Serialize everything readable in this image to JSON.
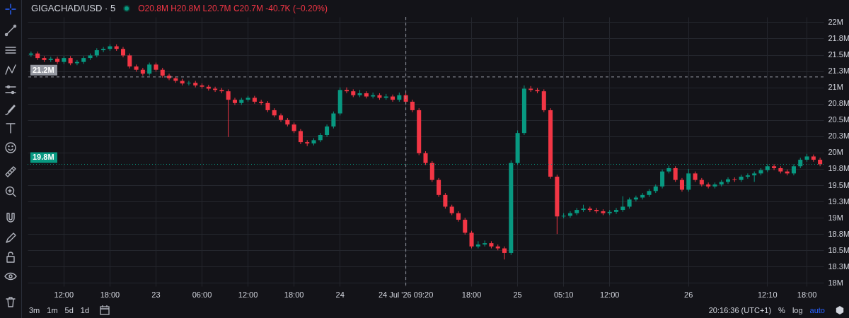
{
  "chart_data": {
    "type": "candlestick",
    "title": "GIGACHAD/USD · 5",
    "subtitle": "O20.8M H20.8M L20.7M C20.7M -40.7K (−0.20%)",
    "annotations": [
      "3m",
      "1m",
      "5d",
      "1d",
      "20:16:36 (UTC+1)",
      "%",
      "log",
      "auto"
    ],
    "categories": [
      null,
      null,
      null,
      null,
      null,
      "12:00",
      null,
      null,
      null,
      null,
      null,
      null,
      "18:00",
      null,
      null,
      null,
      null,
      null,
      null,
      "23",
      null,
      null,
      null,
      null,
      null,
      null,
      "06:00",
      null,
      null,
      null,
      null,
      null,
      null,
      "12:00",
      null,
      null,
      null,
      null,
      null,
      null,
      "18:00",
      null,
      null,
      null,
      null,
      null,
      null,
      "24",
      null,
      null,
      null,
      null,
      null,
      null,
      null,
      null,
      null,
      "24 Jul '26 09:20",
      null,
      null,
      null,
      null,
      null,
      null,
      null,
      null,
      null,
      "18:00",
      null,
      null,
      null,
      null,
      null,
      null,
      "25",
      null,
      null,
      null,
      null,
      null,
      null,
      "05:10",
      null,
      null,
      null,
      null,
      null,
      null,
      "12:00",
      null,
      null,
      null,
      null,
      null,
      null,
      null,
      null,
      null,
      null,
      null,
      "26",
      null,
      null,
      null,
      null,
      null,
      null,
      null,
      null,
      null,
      null,
      null,
      "12:10",
      null,
      null,
      null,
      null,
      null,
      "18:00",
      null,
      null
    ],
    "ohlc": [
      [
        21.5,
        21.55,
        21.47,
        21.52
      ],
      [
        21.52,
        21.55,
        21.42,
        21.45
      ],
      [
        21.45,
        21.48,
        21.39,
        21.42
      ],
      [
        21.42,
        21.47,
        21.39,
        21.44
      ],
      [
        21.44,
        21.47,
        21.36,
        21.39
      ],
      [
        21.39,
        21.48,
        21.36,
        21.45
      ],
      [
        21.45,
        21.48,
        21.34,
        21.37
      ],
      [
        21.37,
        21.42,
        21.34,
        21.39
      ],
      [
        21.39,
        21.48,
        21.36,
        21.45
      ],
      [
        21.45,
        21.52,
        21.42,
        21.49
      ],
      [
        21.49,
        21.6,
        21.46,
        21.57
      ],
      [
        21.57,
        21.62,
        21.54,
        21.59
      ],
      [
        21.59,
        21.66,
        21.56,
        21.63
      ],
      [
        21.63,
        21.66,
        21.56,
        21.59
      ],
      [
        21.59,
        21.62,
        21.46,
        21.49
      ],
      [
        21.49,
        21.52,
        21.29,
        21.32
      ],
      [
        21.32,
        21.35,
        21.24,
        21.27
      ],
      [
        21.27,
        21.3,
        21.18,
        21.21
      ],
      [
        21.21,
        21.38,
        21.18,
        21.35
      ],
      [
        21.35,
        21.38,
        21.24,
        21.27
      ],
      [
        21.27,
        21.3,
        21.15,
        21.18
      ],
      [
        21.18,
        21.21,
        21.11,
        21.14
      ],
      [
        21.14,
        21.17,
        21.07,
        21.1
      ],
      [
        21.1,
        21.13,
        21.03,
        21.06
      ],
      [
        21.06,
        21.1,
        21.03,
        21.07
      ],
      [
        21.07,
        21.1,
        21,
        21.03
      ],
      [
        21.03,
        21.06,
        20.98,
        21.01
      ],
      [
        21.01,
        21.04,
        20.95,
        20.98
      ],
      [
        20.98,
        21.01,
        20.93,
        20.96
      ],
      [
        20.96,
        20.99,
        20.91,
        20.94
      ],
      [
        20.94,
        20.97,
        20.24,
        20.81
      ],
      [
        20.81,
        20.84,
        20.73,
        20.76
      ],
      [
        20.76,
        20.84,
        20.73,
        20.81
      ],
      [
        20.81,
        20.87,
        20.78,
        20.84
      ],
      [
        20.84,
        20.87,
        20.75,
        20.78
      ],
      [
        20.78,
        20.81,
        20.73,
        20.76
      ],
      [
        20.76,
        20.79,
        20.62,
        20.65
      ],
      [
        20.65,
        20.68,
        20.54,
        20.57
      ],
      [
        20.57,
        20.6,
        20.47,
        20.5
      ],
      [
        20.5,
        20.53,
        20.4,
        20.43
      ],
      [
        20.43,
        20.46,
        20.3,
        20.33
      ],
      [
        20.33,
        20.36,
        20.13,
        20.16
      ],
      [
        20.16,
        20.19,
        20.1,
        20.14
      ],
      [
        20.14,
        20.22,
        20.11,
        20.19
      ],
      [
        20.19,
        20.3,
        20.16,
        20.27
      ],
      [
        20.27,
        20.43,
        20.24,
        20.4
      ],
      [
        20.4,
        20.63,
        20.37,
        20.6
      ],
      [
        20.6,
        21,
        20.57,
        20.96
      ],
      [
        20.96,
        21,
        20.91,
        20.94
      ],
      [
        20.94,
        20.97,
        20.85,
        20.88
      ],
      [
        20.88,
        20.96,
        20.85,
        20.91
      ],
      [
        20.91,
        20.94,
        20.83,
        20.86
      ],
      [
        20.86,
        20.92,
        20.83,
        20.88
      ],
      [
        20.88,
        20.91,
        20.81,
        20.84
      ],
      [
        20.84,
        20.9,
        20.81,
        20.86
      ],
      [
        20.86,
        20.89,
        20.78,
        20.81
      ],
      [
        20.81,
        20.92,
        20.78,
        20.88
      ],
      [
        20.88,
        20.91,
        20.75,
        20.78
      ],
      [
        20.78,
        20.81,
        20.62,
        20.65
      ],
      [
        20.65,
        20.68,
        19.96,
        19.99
      ],
      [
        19.99,
        20.02,
        19.81,
        19.84
      ],
      [
        19.84,
        19.87,
        19.55,
        19.58
      ],
      [
        19.58,
        19.61,
        19.32,
        19.35
      ],
      [
        19.35,
        19.38,
        19.14,
        19.17
      ],
      [
        19.17,
        19.2,
        19.04,
        19.07
      ],
      [
        19.07,
        19.1,
        18.94,
        18.97
      ],
      [
        18.97,
        19,
        18.74,
        18.77
      ],
      [
        18.77,
        18.8,
        18.53,
        18.56
      ],
      [
        18.56,
        18.64,
        18.53,
        18.59
      ],
      [
        18.59,
        18.65,
        18.56,
        18.61
      ],
      [
        18.61,
        18.64,
        18.53,
        18.56
      ],
      [
        18.56,
        18.59,
        18.5,
        18.53
      ],
      [
        18.53,
        18.56,
        18.36,
        18.46
      ],
      [
        18.46,
        19.88,
        18.43,
        19.84
      ],
      [
        19.84,
        20.34,
        19.81,
        20.3
      ],
      [
        20.3,
        21.03,
        20.27,
        20.98
      ],
      [
        20.98,
        21.02,
        20.93,
        20.96
      ],
      [
        20.96,
        20.99,
        20.91,
        20.94
      ],
      [
        20.94,
        20.97,
        20.62,
        20.65
      ],
      [
        20.65,
        20.68,
        19.6,
        19.63
      ],
      [
        19.63,
        19.66,
        18.75,
        19.02
      ],
      [
        19.02,
        19.07,
        18.99,
        19.03
      ],
      [
        19.03,
        19.1,
        19,
        19.07
      ],
      [
        19.07,
        19.15,
        19.04,
        19.12
      ],
      [
        19.12,
        19.2,
        19.09,
        19.14
      ],
      [
        19.14,
        19.17,
        19.09,
        19.12
      ],
      [
        19.12,
        19.15,
        19.07,
        19.1
      ],
      [
        19.1,
        19.13,
        19.04,
        19.07
      ],
      [
        19.07,
        19.12,
        19.04,
        19.09
      ],
      [
        19.09,
        19.15,
        19.06,
        19.12
      ],
      [
        19.12,
        19.33,
        19.09,
        19.17
      ],
      [
        19.17,
        19.31,
        19.14,
        19.28
      ],
      [
        19.28,
        19.34,
        19.25,
        19.31
      ],
      [
        19.31,
        19.38,
        19.28,
        19.35
      ],
      [
        19.35,
        19.44,
        19.32,
        19.41
      ],
      [
        19.41,
        19.51,
        19.38,
        19.48
      ],
      [
        19.48,
        19.74,
        19.45,
        19.71
      ],
      [
        19.71,
        19.8,
        19.68,
        19.76
      ],
      [
        19.76,
        19.79,
        19.55,
        19.58
      ],
      [
        19.58,
        19.61,
        19.4,
        19.43
      ],
      [
        19.43,
        19.75,
        19.4,
        19.68
      ],
      [
        19.68,
        19.71,
        19.55,
        19.58
      ],
      [
        19.58,
        19.61,
        19.48,
        19.51
      ],
      [
        19.51,
        19.54,
        19.45,
        19.48
      ],
      [
        19.48,
        19.54,
        19.45,
        19.51
      ],
      [
        19.51,
        19.58,
        19.48,
        19.55
      ],
      [
        19.55,
        19.62,
        19.52,
        19.59
      ],
      [
        19.59,
        19.62,
        19.55,
        19.58
      ],
      [
        19.58,
        19.66,
        19.55,
        19.63
      ],
      [
        19.63,
        19.68,
        19.6,
        19.65
      ],
      [
        19.65,
        19.71,
        19.55,
        19.68
      ],
      [
        19.68,
        19.76,
        19.65,
        19.73
      ],
      [
        19.73,
        19.82,
        19.7,
        19.79
      ],
      [
        19.79,
        19.82,
        19.73,
        19.76
      ],
      [
        19.76,
        19.79,
        19.68,
        19.71
      ],
      [
        19.71,
        19.74,
        19.65,
        19.68
      ],
      [
        19.68,
        19.82,
        19.65,
        19.79
      ],
      [
        19.79,
        19.92,
        19.76,
        19.89
      ],
      [
        19.89,
        19.98,
        19.86,
        19.94
      ],
      [
        19.94,
        19.97,
        19.86,
        19.89
      ],
      [
        19.89,
        19.92,
        19.79,
        19.82
      ]
    ],
    "colors": [
      "#089981",
      "#f23645",
      "#f23645",
      "#089981",
      "#f23645",
      "#089981",
      "#f23645",
      "#089981",
      "#089981",
      "#089981",
      "#089981",
      "#089981",
      "#089981",
      "#f23645",
      "#f23645",
      "#f23645",
      "#f23645",
      "#f23645",
      "#089981",
      "#f23645",
      "#f23645",
      "#f23645",
      "#f23645",
      "#f23645",
      "#089981",
      "#f23645",
      "#f23645",
      "#f23645",
      "#f23645",
      "#f23645",
      "#f23645",
      "#f23645",
      "#089981",
      "#089981",
      "#f23645",
      "#f23645",
      "#f23645",
      "#f23645",
      "#f23645",
      "#f23645",
      "#f23645",
      "#f23645",
      "#f23645",
      "#089981",
      "#089981",
      "#089981",
      "#089981",
      "#089981",
      "#f23645",
      "#f23645",
      "#089981",
      "#f23645",
      "#089981",
      "#f23645",
      "#089981",
      "#f23645",
      "#089981",
      "#f23645",
      "#f23645",
      "#f23645",
      "#f23645",
      "#f23645",
      "#f23645",
      "#f23645",
      "#f23645",
      "#f23645",
      "#f23645",
      "#f23645",
      "#089981",
      "#089981",
      "#f23645",
      "#f23645",
      "#f23645",
      "#089981",
      "#089981",
      "#089981",
      "#f23645",
      "#f23645",
      "#f23645",
      "#f23645",
      "#f23645",
      "#089981",
      "#089981",
      "#089981",
      "#089981",
      "#f23645",
      "#f23645",
      "#f23645",
      "#089981",
      "#089981",
      "#089981",
      "#089981",
      "#089981",
      "#089981",
      "#089981",
      "#089981",
      "#089981",
      "#089981",
      "#f23645",
      "#f23645",
      "#089981",
      "#f23645",
      "#f23645",
      "#f23645",
      "#089981",
      "#089981",
      "#089981",
      "#f23645",
      "#089981",
      "#089981",
      "#089981",
      "#089981",
      "#089981",
      "#f23645",
      "#f23645",
      "#f23645",
      "#089981",
      "#089981",
      "#089981",
      "#f23645",
      "#f23645"
    ],
    "ylim": [
      17.95,
      22.08
    ],
    "yticks": [
      {
        "value": 18,
        "label": "18M"
      },
      {
        "value": 18.25,
        "label": "18.3M"
      },
      {
        "value": 18.5,
        "label": "18.5M"
      },
      {
        "value": 18.75,
        "label": "18.8M"
      },
      {
        "value": 19,
        "label": "19M"
      },
      {
        "value": 19.25,
        "label": "19.3M"
      },
      {
        "value": 19.5,
        "label": "19.5M"
      },
      {
        "value": 19.75,
        "label": "19.8M"
      },
      {
        "value": 20,
        "label": "20M"
      },
      {
        "value": 20.25,
        "label": "20.3M"
      },
      {
        "value": 20.5,
        "label": "20.5M"
      },
      {
        "value": 20.75,
        "label": "20.8M"
      },
      {
        "value": 21,
        "label": "21M"
      },
      {
        "value": 21.25,
        "label": "21.3M"
      },
      {
        "value": 21.5,
        "label": "21.5M"
      },
      {
        "value": 21.75,
        "label": "21.8M"
      },
      {
        "value": 22,
        "label": "22M"
      }
    ],
    "ref_lines": [
      {
        "axis": "y",
        "value": 21.16,
        "label": "21.2M",
        "color": "#9598a1",
        "line_style": "dashed"
      },
      {
        "axis": "y",
        "value": 19.82,
        "label": "19.8M",
        "color": "#089981",
        "line_style": "dotted"
      },
      {
        "axis": "x",
        "value": "24 Jul '26 09:20",
        "color": "#9598a1",
        "line_style": "dashed"
      }
    ],
    "grid": true
  }
}
